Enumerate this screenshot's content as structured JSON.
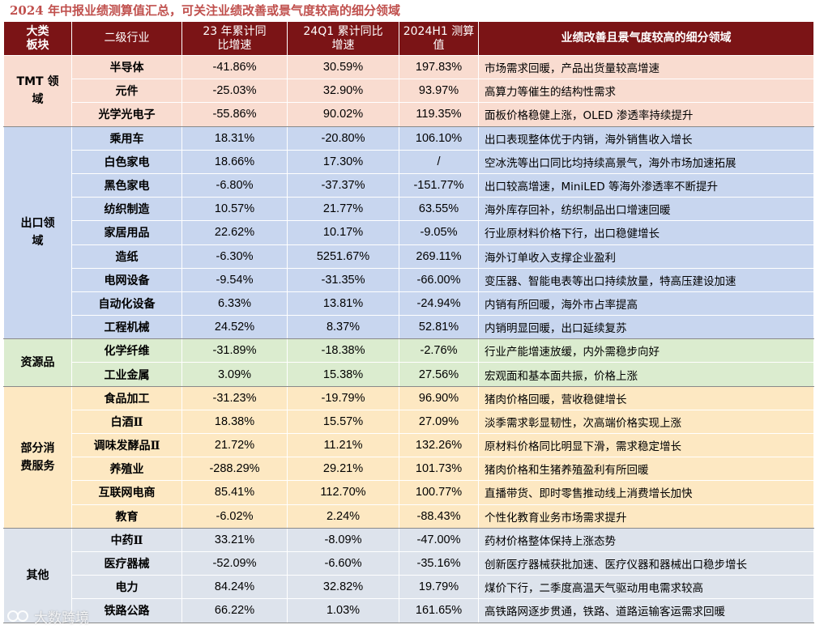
{
  "title": "2024 年中报业绩测算值汇总，可关注业绩改善或景气度较高的细分领域",
  "colors": {
    "header_bg": "#7b1416",
    "title_color": "#c0504d",
    "tmt": "#f9dcd0",
    "export": "#c8d6ef",
    "resource": "#dbeccf",
    "consumer": "#fde8c2",
    "other": "#dde3ec"
  },
  "headers": {
    "sector_line1": "大类",
    "sector_line2": "板块",
    "industry": "二级行业",
    "growth23_line1": "23 年累计同",
    "growth23_line2": "比增速",
    "q1_line1": "24Q1 累计同比",
    "q1_line2": "增速",
    "h1_line1": "2024H1 测算",
    "h1_line2": "值",
    "note": "业绩改善且景气度较高的细分领域"
  },
  "groups": [
    {
      "key": "tmt",
      "label_line1": "TMT 领",
      "label_line2": "域",
      "rows": [
        {
          "industry": "半导体",
          "g23": "-41.86%",
          "q1": "30.59%",
          "h1": "197.83%",
          "note": "市场需求回暖，产品出货量较高增速"
        },
        {
          "industry": "元件",
          "g23": "-25.03%",
          "q1": "32.90%",
          "h1": "93.97%",
          "note": "高算力等催生的结构性需求"
        },
        {
          "industry": "光学光电子",
          "g23": "-55.86%",
          "q1": "90.02%",
          "h1": "119.35%",
          "note": "面板价格稳健上涨，OLED 渗透率持续提升"
        }
      ]
    },
    {
      "key": "export",
      "label_line1": "出口领",
      "label_line2": "域",
      "rows": [
        {
          "industry": "乘用车",
          "g23": "18.31%",
          "q1": "-20.80%",
          "h1": "106.10%",
          "note": "出口表现整体优于内销，海外销售收入增长"
        },
        {
          "industry": "白色家电",
          "g23": "18.66%",
          "q1": "17.30%",
          "h1": "/",
          "note": "空冰洗等出口同比均持续高景气，海外市场加速拓展"
        },
        {
          "industry": "黑色家电",
          "g23": "-6.80%",
          "q1": "-37.37%",
          "h1": "-151.77%",
          "note": "出口较高增速，MiniLED 等海外渗透率不断提升"
        },
        {
          "industry": "纺织制造",
          "g23": "10.57%",
          "q1": "21.77%",
          "h1": "63.55%",
          "note": "海外库存回补，纺织制品出口增速回暖"
        },
        {
          "industry": "家居用品",
          "g23": "22.62%",
          "q1": "10.17%",
          "h1": "-9.05%",
          "note": "行业原材料价格下行，出口稳健增长"
        },
        {
          "industry": "造纸",
          "g23": "-6.30%",
          "q1": "5251.67%",
          "h1": "269.11%",
          "note": "海外订单收入支撑企业盈利"
        },
        {
          "industry": "电网设备",
          "g23": "-9.54%",
          "q1": "-31.35%",
          "h1": "-66.00%",
          "note": "变压器、智能电表等出口持续放量，特高压建设加速"
        },
        {
          "industry": "自动化设备",
          "g23": "6.33%",
          "q1": "13.81%",
          "h1": "-24.94%",
          "note": "内销有所回暖，海外市占率提高"
        },
        {
          "industry": "工程机械",
          "g23": "24.52%",
          "q1": "8.37%",
          "h1": "52.81%",
          "note": "内销明显回暖，出口延续复苏"
        }
      ]
    },
    {
      "key": "resource",
      "label_line1": "资源品",
      "label_line2": "",
      "rows": [
        {
          "industry": "化学纤维",
          "g23": "-31.89%",
          "q1": "-18.38%",
          "h1": "-2.76%",
          "note": "行业产能增速放缓，内外需稳步向好"
        },
        {
          "industry": "工业金属",
          "g23": "3.09%",
          "q1": "15.38%",
          "h1": "27.56%",
          "note": "宏观面和基本面共振，价格上涨"
        }
      ]
    },
    {
      "key": "consumer",
      "label_line1": "部分消",
      "label_line2": "费服务",
      "rows": [
        {
          "industry": "食品加工",
          "g23": "-31.23%",
          "q1": "-19.79%",
          "h1": "96.90%",
          "note": "猪肉价格回暖，营收稳健增长"
        },
        {
          "industry": "白酒Ⅱ",
          "g23": "18.38%",
          "q1": "15.57%",
          "h1": "27.09%",
          "note": "淡季需求彰显韧性，次高端价格实现上涨"
        },
        {
          "industry": "调味发酵品Ⅱ",
          "g23": "21.72%",
          "q1": "11.21%",
          "h1": "132.26%",
          "note": "原材料价格同比明显下滑，需求稳定增长"
        },
        {
          "industry": "养殖业",
          "g23": "-288.29%",
          "q1": "29.21%",
          "h1": "101.73%",
          "note": "猪肉价格和生猪养殖盈利有所回暖"
        },
        {
          "industry": "互联网电商",
          "g23": "85.41%",
          "q1": "112.70%",
          "h1": "100.77%",
          "note": "直播带货、即时零售推动线上消费增长加快"
        },
        {
          "industry": "教育",
          "g23": "-6.02%",
          "q1": "2.24%",
          "h1": "-88.43%",
          "note": "个性化教育业务市场需求提升"
        }
      ]
    },
    {
      "key": "other",
      "label_line1": "其他",
      "label_line2": "",
      "rows": [
        {
          "industry": "中药Ⅱ",
          "g23": "33.21%",
          "q1": "-8.09%",
          "h1": "-47.00%",
          "note": "药材价格整体保持上涨态势"
        },
        {
          "industry": "医疗器械",
          "g23": "-52.09%",
          "q1": "-6.60%",
          "h1": "-35.16%",
          "note": "创新医疗器械获批加速、医疗仪器和器械出口稳步增长"
        },
        {
          "industry": "电力",
          "g23": "84.24%",
          "q1": "32.82%",
          "h1": "19.79%",
          "note": "煤价下行，二季度高温天气驱动用电需求较高"
        },
        {
          "industry": "铁路公路",
          "g23": "66.22%",
          "q1": "1.03%",
          "h1": "161.65%",
          "note": "高铁路网逐步贯通，铁路、道路运输客运需求回暖"
        }
      ]
    }
  ],
  "watermark": "大数跨境"
}
